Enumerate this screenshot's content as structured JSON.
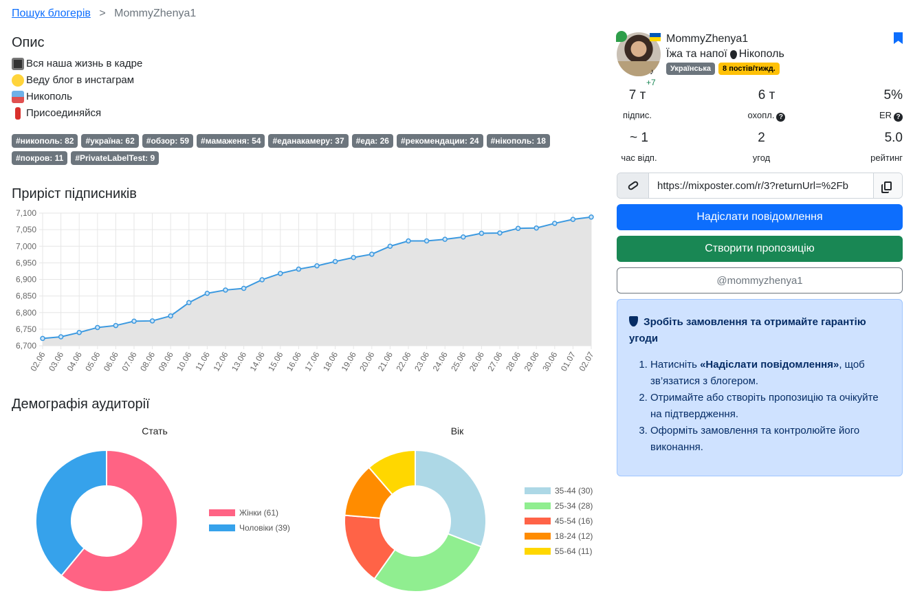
{
  "breadcrumb": {
    "link": "Пошук блогерів",
    "sep": ">",
    "current": "MommyZhenya1"
  },
  "description": {
    "title": "Опис",
    "lines": [
      "Вся наша жизнь в кадре",
      "Веду блог в инстаграм",
      "Никополь",
      "Присоединяйся"
    ]
  },
  "tags": [
    "#никополь: 82",
    "#україна: 62",
    "#обзор: 59",
    "#мамаженя: 54",
    "#еданакамеру: 37",
    "#еда: 26",
    "#рекомендации: 24",
    "#нікополь: 18",
    "#покров: 11",
    "#PrivateLabelTest: 9"
  ],
  "growth_title": "Приріст підписників",
  "demography_title": "Демографія аудиторії",
  "chart_data": [
    {
      "type": "area",
      "title": "Приріст підписників",
      "x": [
        "02.06",
        "03.06",
        "04.06",
        "05.06",
        "06.06",
        "07.06",
        "08.06",
        "09.06",
        "10.06",
        "11.06",
        "12.06",
        "13.06",
        "14.06",
        "15.06",
        "16.06",
        "17.06",
        "18.06",
        "19.06",
        "20.06",
        "21.06",
        "22.06",
        "23.06",
        "24.06",
        "25.06",
        "26.06",
        "27.06",
        "28.06",
        "29.06",
        "30.06",
        "01.07",
        "02.07"
      ],
      "y": [
        6722,
        6727,
        6740,
        6755,
        6761,
        6774,
        6775,
        6790,
        6830,
        6858,
        6868,
        6873,
        6899,
        6918,
        6931,
        6941,
        6954,
        6966,
        6976,
        7000,
        7016,
        7016,
        7021,
        7028,
        7039,
        7040,
        7054,
        7055,
        7069,
        7081,
        7088
      ],
      "ylim": [
        6700,
        7100
      ],
      "yticks": [
        "6,700",
        "6,750",
        "6,800",
        "6,850",
        "6,900",
        "6,950",
        "7,000",
        "7,050",
        "7,100"
      ],
      "grid": true,
      "color": "#3b99e0",
      "fill": "#e4e4e4"
    },
    {
      "type": "pie",
      "title": "Стать",
      "labels": [
        "Жінки (61)",
        "Чоловіки (39)"
      ],
      "values": [
        61,
        39
      ],
      "colors": [
        "#ff6384",
        "#36a2eb"
      ],
      "legend": "right"
    },
    {
      "type": "pie",
      "title": "Вік",
      "labels": [
        "35-44 (30)",
        "25-34 (28)",
        "45-54 (16)",
        "18-24 (12)",
        "55-64 (11)"
      ],
      "values": [
        30,
        28,
        16,
        12,
        11
      ],
      "colors": [
        "#add8e6",
        "#90ee90",
        "#ff6347",
        "#ff8c00",
        "#ffd700"
      ],
      "legend": "right"
    }
  ],
  "profile": {
    "name": "MommyZhenya1",
    "category": "Їжа та напої",
    "city": "Нікополь",
    "lang_badge": "Українська",
    "freq_badge": "8 постів/тижд.",
    "more_count": "+7",
    "stats": [
      {
        "value": "7 т",
        "label": "підпис."
      },
      {
        "value": "6 т",
        "label": "охопл."
      },
      {
        "value": "5%",
        "label": "ER"
      },
      {
        "value": "~ 1",
        "label": "час відп."
      },
      {
        "value": "2",
        "label": "угод"
      },
      {
        "value": "5.0",
        "label": "рейтинг"
      }
    ],
    "link": "https://mixposter.com/r/3?returnUrl=%2Fb",
    "send_message": "Надіслати повідомлення",
    "create_offer": "Створити пропозицію",
    "handle": "@mommyzhenya1"
  },
  "guarantee": {
    "title": "Зробіть замовлення та отримайте гарантію угоди",
    "step1_pre": "Натисніть ",
    "step1_bold": "«Надіслати повідомлення»",
    "step1_post": ", щоб зв’язатися з блогером.",
    "step2": "Отримайте або створіть пропозицію та очікуйте на підтвердження.",
    "step3": "Оформіть замовлення та контролюйте його виконання."
  },
  "colors": {
    "primary": "#0d6efd",
    "success": "#198754",
    "badge_gray": "#6c757d",
    "badge_yellow": "#ffc107",
    "info_bg": "#cfe2ff"
  }
}
